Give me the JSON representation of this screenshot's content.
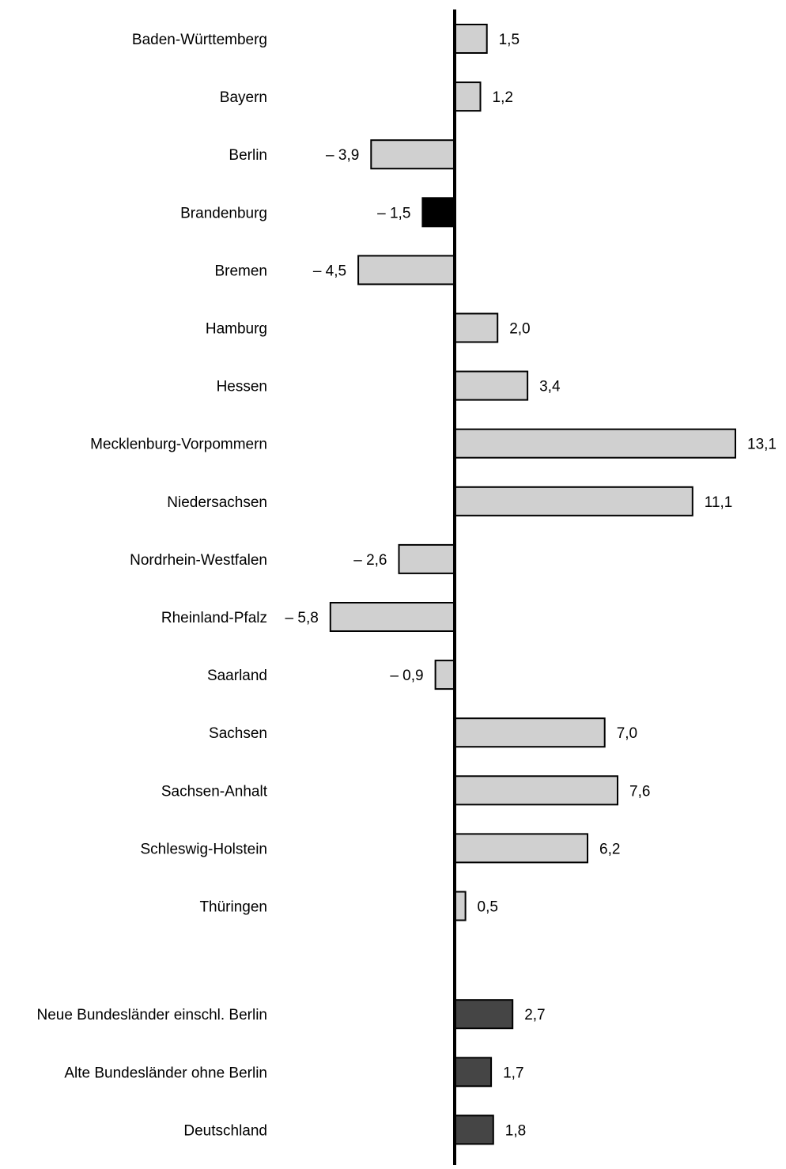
{
  "chart_data": {
    "type": "bar",
    "orientation": "horizontal",
    "title": "",
    "xlabel": "",
    "ylabel": "",
    "grid": false,
    "legend": "none",
    "categories": [
      "Baden-Württemberg",
      "Bayern",
      "Berlin",
      "Brandenburg",
      "Bremen",
      "Hamburg",
      "Hessen",
      "Mecklenburg-Vorpommern",
      "Niedersachsen",
      "Nordrhein-Westfalen",
      "Rheinland-Pfalz",
      "Saarland",
      "Sachsen",
      "Sachsen-Anhalt",
      "Schleswig-Holstein",
      "Thüringen",
      "Neue Bundesländer einschl. Berlin",
      "Alte Bundesländer ohne Berlin",
      "Deutschland"
    ],
    "values": [
      1.5,
      1.2,
      -3.9,
      -1.5,
      -4.5,
      2.0,
      3.4,
      13.1,
      11.1,
      -2.6,
      -5.8,
      -0.9,
      7.0,
      7.6,
      6.2,
      0.5,
      2.7,
      1.7,
      1.8
    ],
    "value_labels": [
      "1,5",
      "1,2",
      "– 3,9",
      "– 1,5",
      "– 4,5",
      "2,0",
      "3,4",
      "13,1",
      "11,1",
      "– 2,6",
      "– 5,8",
      "– 0,9",
      "7,0",
      "7,6",
      "6,2",
      "0,5",
      "2,7",
      "1,7",
      "1,8"
    ],
    "bar_colors": [
      "#d0d0d0",
      "#d0d0d0",
      "#d0d0d0",
      "#000000",
      "#d0d0d0",
      "#d0d0d0",
      "#d0d0d0",
      "#d0d0d0",
      "#d0d0d0",
      "#d0d0d0",
      "#d0d0d0",
      "#d0d0d0",
      "#d0d0d0",
      "#d0d0d0",
      "#d0d0d0",
      "#d0d0d0",
      "#454545",
      "#454545",
      "#454545"
    ],
    "group_gap_after_index": 15,
    "xlim": [
      -5.8,
      13.1
    ]
  },
  "colors": {
    "bar_default": "#d0d0d0",
    "bar_highlight": "#000000",
    "bar_aggregate": "#454545",
    "axis": "#000000",
    "bar_stroke": "#000000"
  }
}
